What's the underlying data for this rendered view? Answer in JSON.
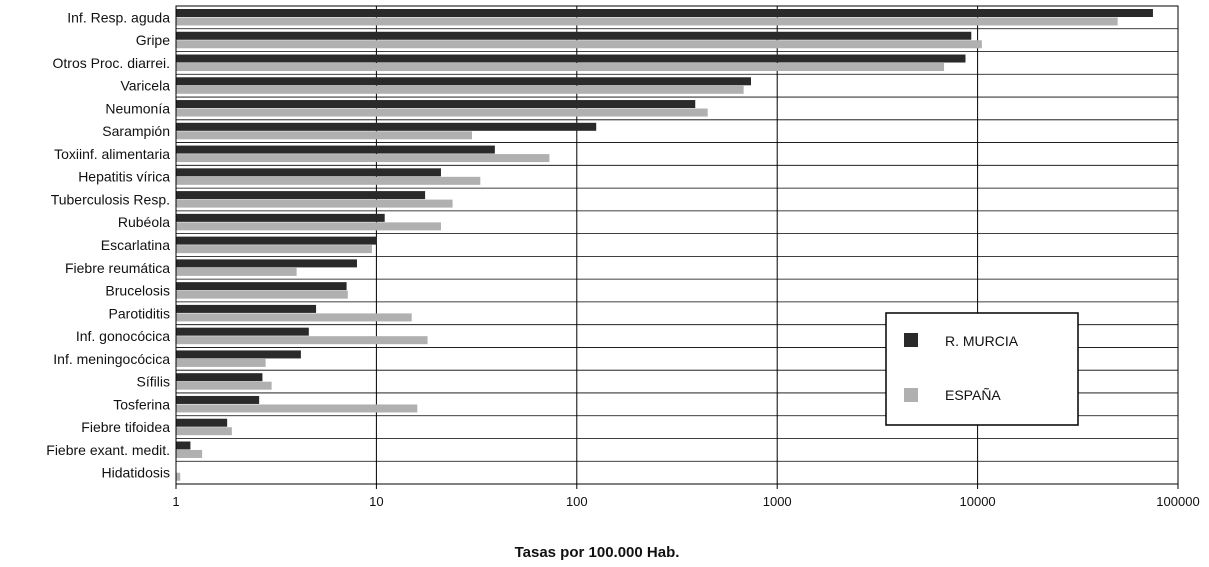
{
  "chart_data": {
    "type": "bar",
    "orientation": "horizontal",
    "xscale": "log",
    "xlim": [
      1,
      100000
    ],
    "xticks": [
      "1",
      "10",
      "100",
      "1000",
      "10000",
      "100000"
    ],
    "xlabel": "Tasas por 100.000 Hab.",
    "grid": "vertical lines at decades, horizontal lines between categories",
    "legend_position": "right-middle",
    "categories": [
      "Inf. Resp. aguda",
      "Gripe",
      "Otros Proc. diarrei.",
      "Varicela",
      "Neumonía",
      "Sarampión",
      "Toxiinf. alimentaria",
      "Hepatitis vírica",
      "Tuberculosis Resp.",
      "Rubéola",
      "Escarlatina",
      "Fiebre reumática",
      "Brucelosis",
      "Parotiditis",
      "Inf. gonocócica",
      "Inf. meningocócica",
      "Sífilis",
      "Tosferina",
      "Fiebre tifoidea",
      "Fiebre exant. medit.",
      "Hidatidosis"
    ],
    "series": [
      {
        "name": "R. MURCIA",
        "color": "#2a2a2a",
        "values": [
          75000,
          9300,
          8700,
          740,
          390,
          125,
          39,
          21,
          17.5,
          11,
          10,
          8,
          7.1,
          5,
          4.6,
          4.2,
          2.7,
          2.6,
          1.8,
          1.18,
          0
        ]
      },
      {
        "name": "ESPAÑA",
        "color": "#b0b0b0",
        "values": [
          50000,
          10500,
          6800,
          680,
          450,
          30,
          73,
          33,
          24,
          21,
          9.5,
          4,
          7.2,
          15,
          18,
          2.8,
          3,
          16,
          1.9,
          1.35,
          1.05
        ]
      }
    ]
  }
}
